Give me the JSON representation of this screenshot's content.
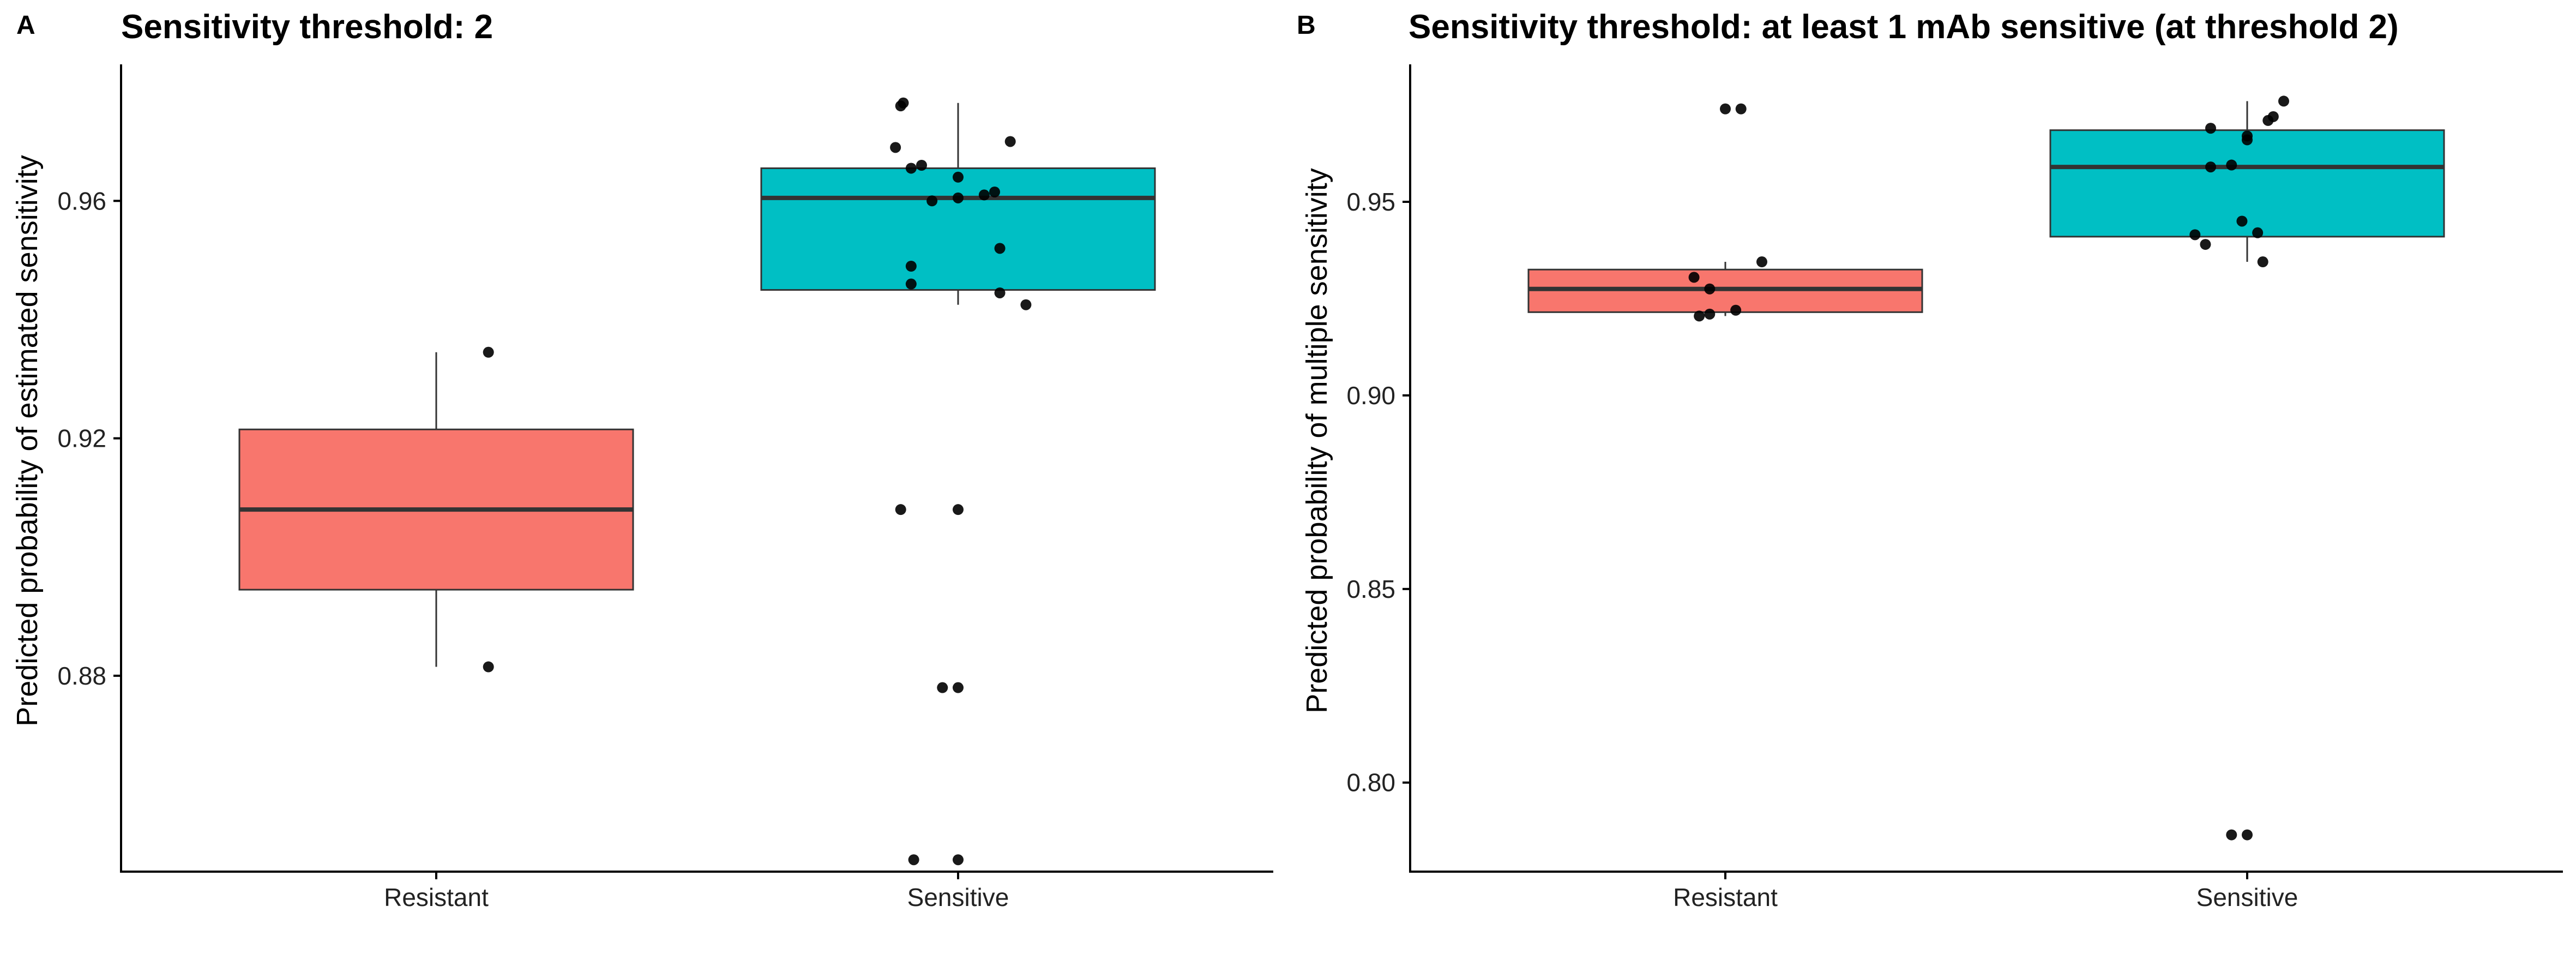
{
  "chart_data": [
    {
      "type": "box",
      "panel": "A",
      "title": "Sensitivity threshold: 2",
      "xlabel": "",
      "ylabel": "Predicted probability of estimated sensitivity",
      "ylim": [
        0.847,
        0.983
      ],
      "yticks": [
        0.88,
        0.92,
        0.96
      ],
      "ytick_labels": [
        "0.88",
        "0.92",
        "0.96"
      ],
      "categories": [
        "Resistant",
        "Sensitive"
      ],
      "colors": {
        "Resistant": "#F8766D",
        "Sensitive": "#00BFC4"
      },
      "boxes": [
        {
          "category": "Resistant",
          "whisker_low": 0.8815,
          "q1": 0.8945,
          "median": 0.908,
          "q3": 0.9215,
          "whisker_high": 0.9345
        },
        {
          "category": "Sensitive",
          "whisker_low": 0.9425,
          "q1": 0.945,
          "median": 0.9605,
          "q3": 0.9655,
          "whisker_high": 0.9765
        }
      ],
      "points": [
        {
          "category": "Resistant",
          "jitter": 0.1,
          "y": 0.9345
        },
        {
          "category": "Resistant",
          "jitter": 0.1,
          "y": 0.8815
        },
        {
          "category": "Sensitive",
          "jitter": -0.11,
          "y": 0.976
        },
        {
          "category": "Sensitive",
          "jitter": -0.105,
          "y": 0.9765
        },
        {
          "category": "Sensitive",
          "jitter": -0.12,
          "y": 0.969
        },
        {
          "category": "Sensitive",
          "jitter": 0.1,
          "y": 0.97
        },
        {
          "category": "Sensitive",
          "jitter": -0.09,
          "y": 0.9655
        },
        {
          "category": "Sensitive",
          "jitter": -0.07,
          "y": 0.966
        },
        {
          "category": "Sensitive",
          "jitter": 0.0,
          "y": 0.964
        },
        {
          "category": "Sensitive",
          "jitter": 0.05,
          "y": 0.961
        },
        {
          "category": "Sensitive",
          "jitter": 0.07,
          "y": 0.9615
        },
        {
          "category": "Sensitive",
          "jitter": -0.05,
          "y": 0.96
        },
        {
          "category": "Sensitive",
          "jitter": 0.0,
          "y": 0.9605
        },
        {
          "category": "Sensitive",
          "jitter": 0.08,
          "y": 0.952
        },
        {
          "category": "Sensitive",
          "jitter": -0.09,
          "y": 0.949
        },
        {
          "category": "Sensitive",
          "jitter": -0.09,
          "y": 0.946
        },
        {
          "category": "Sensitive",
          "jitter": 0.08,
          "y": 0.9445
        },
        {
          "category": "Sensitive",
          "jitter": 0.13,
          "y": 0.9425
        },
        {
          "category": "Sensitive",
          "jitter": -0.11,
          "y": 0.908
        },
        {
          "category": "Sensitive",
          "jitter": 0.0,
          "y": 0.908
        },
        {
          "category": "Sensitive",
          "jitter": -0.03,
          "y": 0.878
        },
        {
          "category": "Sensitive",
          "jitter": 0.0,
          "y": 0.878
        },
        {
          "category": "Sensitive",
          "jitter": -0.085,
          "y": 0.849
        },
        {
          "category": "Sensitive",
          "jitter": 0.0,
          "y": 0.849
        }
      ]
    },
    {
      "type": "box",
      "panel": "B",
      "title": "Sensitivity threshold: at least 1 mAb sensitive (at threshold 2)",
      "xlabel": "",
      "ylabel": "Predicted probability of multiple sensitivity",
      "ylim": [
        0.777,
        0.9855
      ],
      "yticks": [
        0.8,
        0.85,
        0.9,
        0.95
      ],
      "ytick_labels": [
        "0.80",
        "0.85",
        "0.90",
        "0.95"
      ],
      "categories": [
        "Resistant",
        "Sensitive"
      ],
      "colors": {
        "Resistant": "#F8766D",
        "Sensitive": "#00BFC4"
      },
      "boxes": [
        {
          "category": "Resistant",
          "whisker_low": 0.9205,
          "q1": 0.9215,
          "median": 0.9275,
          "q3": 0.9325,
          "whisker_high": 0.9345
        },
        {
          "category": "Sensitive",
          "whisker_low": 0.9345,
          "q1": 0.941,
          "median": 0.959,
          "q3": 0.9685,
          "whisker_high": 0.976
        }
      ],
      "points": [
        {
          "category": "Resistant",
          "jitter": 0.0,
          "y": 0.974
        },
        {
          "category": "Resistant",
          "jitter": 0.03,
          "y": 0.974
        },
        {
          "category": "Resistant",
          "jitter": 0.07,
          "y": 0.9345
        },
        {
          "category": "Resistant",
          "jitter": -0.06,
          "y": 0.9305
        },
        {
          "category": "Resistant",
          "jitter": -0.03,
          "y": 0.9275
        },
        {
          "category": "Resistant",
          "jitter": -0.05,
          "y": 0.9205
        },
        {
          "category": "Resistant",
          "jitter": -0.03,
          "y": 0.921
        },
        {
          "category": "Resistant",
          "jitter": 0.02,
          "y": 0.922
        },
        {
          "category": "Sensitive",
          "jitter": 0.07,
          "y": 0.976
        },
        {
          "category": "Sensitive",
          "jitter": 0.05,
          "y": 0.972
        },
        {
          "category": "Sensitive",
          "jitter": 0.04,
          "y": 0.971
        },
        {
          "category": "Sensitive",
          "jitter": -0.07,
          "y": 0.969
        },
        {
          "category": "Sensitive",
          "jitter": 0.0,
          "y": 0.967
        },
        {
          "category": "Sensitive",
          "jitter": 0.0,
          "y": 0.966
        },
        {
          "category": "Sensitive",
          "jitter": -0.07,
          "y": 0.959
        },
        {
          "category": "Sensitive",
          "jitter": -0.03,
          "y": 0.9595
        },
        {
          "category": "Sensitive",
          "jitter": -0.01,
          "y": 0.945
        },
        {
          "category": "Sensitive",
          "jitter": 0.02,
          "y": 0.942
        },
        {
          "category": "Sensitive",
          "jitter": -0.1,
          "y": 0.9415
        },
        {
          "category": "Sensitive",
          "jitter": -0.08,
          "y": 0.939
        },
        {
          "category": "Sensitive",
          "jitter": 0.03,
          "y": 0.9345
        },
        {
          "category": "Sensitive",
          "jitter": -0.03,
          "y": 0.7865
        },
        {
          "category": "Sensitive",
          "jitter": 0.0,
          "y": 0.7865
        }
      ]
    }
  ]
}
